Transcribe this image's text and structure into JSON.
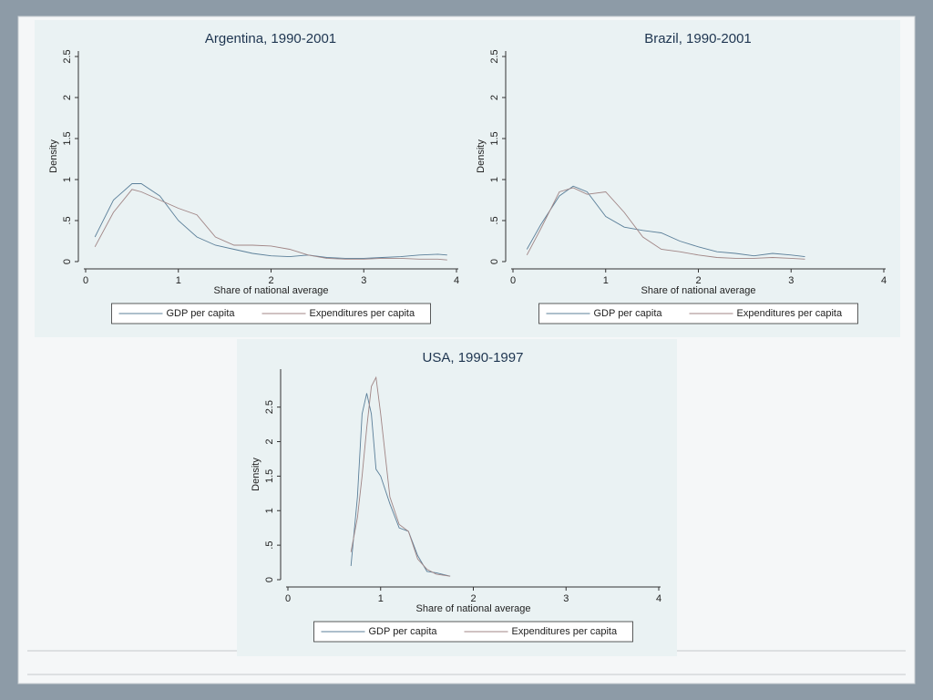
{
  "chart_data": [
    {
      "type": "line",
      "title": "Argentina, 1990-2001",
      "x_label": "Share of national average",
      "y_label": "Density",
      "x": [
        0.1,
        0.3,
        0.5,
        0.6,
        0.8,
        1.0,
        1.2,
        1.4,
        1.6,
        1.8,
        2.0,
        2.2,
        2.4,
        2.6,
        2.8,
        3.0,
        3.2,
        3.4,
        3.6,
        3.8,
        3.9
      ],
      "series": [
        {
          "name": "GDP per capita",
          "color": "#5b7f99",
          "values": [
            0.3,
            0.75,
            0.95,
            0.95,
            0.8,
            0.5,
            0.3,
            0.2,
            0.15,
            0.1,
            0.07,
            0.06,
            0.08,
            0.05,
            0.04,
            0.04,
            0.05,
            0.06,
            0.08,
            0.09,
            0.08
          ]
        },
        {
          "name": "Expenditures per capita",
          "color": "#a08585",
          "values": [
            0.18,
            0.6,
            0.88,
            0.85,
            0.75,
            0.65,
            0.57,
            0.3,
            0.2,
            0.2,
            0.19,
            0.15,
            0.08,
            0.04,
            0.03,
            0.03,
            0.04,
            0.04,
            0.03,
            0.03,
            0.02
          ]
        }
      ],
      "xlim": [
        0,
        4
      ],
      "xticks": [
        0,
        1,
        2,
        3,
        4
      ],
      "ylim": [
        0,
        2.5
      ],
      "yticks": [
        0,
        {
          "value": 0.5,
          "label": ".5"
        },
        1,
        1.5,
        2,
        2.5
      ],
      "legend": "bottom"
    },
    {
      "type": "line",
      "title": "Brazil, 1990-2001",
      "x_label": "Share of national average",
      "y_label": "Density",
      "x": [
        0.15,
        0.3,
        0.5,
        0.65,
        0.8,
        1.0,
        1.2,
        1.4,
        1.6,
        1.8,
        2.0,
        2.2,
        2.4,
        2.6,
        2.8,
        3.0,
        3.15
      ],
      "series": [
        {
          "name": "GDP per capita",
          "color": "#5b7f99",
          "values": [
            0.15,
            0.45,
            0.8,
            0.92,
            0.85,
            0.55,
            0.42,
            0.38,
            0.35,
            0.25,
            0.18,
            0.12,
            0.1,
            0.07,
            0.1,
            0.08,
            0.06
          ]
        },
        {
          "name": "Expenditures per capita",
          "color": "#a08585",
          "values": [
            0.08,
            0.4,
            0.85,
            0.9,
            0.82,
            0.85,
            0.6,
            0.3,
            0.15,
            0.12,
            0.08,
            0.05,
            0.04,
            0.04,
            0.05,
            0.04,
            0.03
          ]
        }
      ],
      "xlim": [
        0,
        4
      ],
      "xticks": [
        0,
        1,
        2,
        3,
        4
      ],
      "ylim": [
        0,
        2.5
      ],
      "yticks": [
        0,
        {
          "value": 0.5,
          "label": ".5"
        },
        1,
        1.5,
        2,
        2.5
      ],
      "legend": "bottom"
    },
    {
      "type": "line",
      "title": "USA, 1990-1997",
      "x_label": "Share of national average",
      "y_label": "Density",
      "x": [
        0.68,
        0.75,
        0.8,
        0.85,
        0.9,
        0.95,
        1.0,
        1.1,
        1.2,
        1.3,
        1.4,
        1.5,
        1.6,
        1.75
      ],
      "series": [
        {
          "name": "GDP per capita",
          "color": "#5b7f99",
          "values": [
            0.2,
            1.2,
            2.4,
            2.7,
            2.4,
            1.6,
            1.5,
            1.1,
            0.75,
            0.7,
            0.35,
            0.12,
            0.1,
            0.05
          ]
        },
        {
          "name": "Expenditures per capita",
          "color": "#a08585",
          "values": [
            0.4,
            0.9,
            1.5,
            2.2,
            2.8,
            2.93,
            2.4,
            1.2,
            0.8,
            0.7,
            0.3,
            0.15,
            0.08,
            0.05
          ]
        }
      ],
      "xlim": [
        0,
        4
      ],
      "xticks": [
        0,
        1,
        2,
        3,
        4
      ],
      "ylim": [
        0,
        3.05
      ],
      "yticks": [
        0,
        {
          "value": 0.5,
          "label": ".5"
        },
        1,
        1.5,
        2,
        2.5
      ],
      "legend": "bottom"
    }
  ]
}
